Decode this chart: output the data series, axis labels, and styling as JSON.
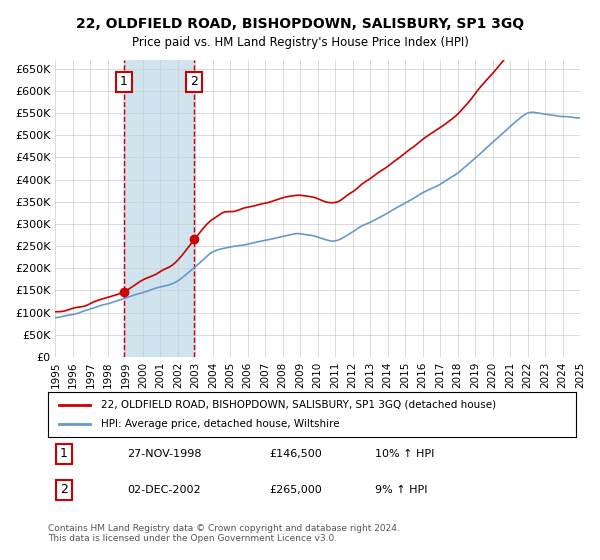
{
  "title": "22, OLDFIELD ROAD, BISHOPDOWN, SALISBURY, SP1 3GQ",
  "subtitle": "Price paid vs. HM Land Registry's House Price Index (HPI)",
  "ylabel_ticks": [
    "£0",
    "£50K",
    "£100K",
    "£150K",
    "£200K",
    "£250K",
    "£300K",
    "£350K",
    "£400K",
    "£450K",
    "£500K",
    "£550K",
    "£600K",
    "£650K"
  ],
  "ytick_values": [
    0,
    50000,
    100000,
    150000,
    200000,
    250000,
    300000,
    350000,
    400000,
    450000,
    500000,
    550000,
    600000,
    650000
  ],
  "x_start_year": 1995,
  "x_end_year": 2025,
  "sale1_year": 1998.92,
  "sale1_price": 146500,
  "sale2_year": 2002.92,
  "sale2_price": 265000,
  "sale1_label": "1",
  "sale2_label": "2",
  "sale1_date": "27-NOV-1998",
  "sale1_amount": "£146,500",
  "sale1_hpi": "10% ↑ HPI",
  "sale2_date": "02-DEC-2002",
  "sale2_amount": "£265,000",
  "sale2_hpi": "9% ↑ HPI",
  "legend_line1": "22, OLDFIELD ROAD, BISHOPDOWN, SALISBURY, SP1 3GQ (detached house)",
  "legend_line2": "HPI: Average price, detached house, Wiltshire",
  "footer": "Contains HM Land Registry data © Crown copyright and database right 2024.\nThis data is licensed under the Open Government Licence v3.0.",
  "line_color_red": "#cc0000",
  "line_color_blue": "#6699cc",
  "shading_color": "#d0e4f0",
  "background_color": "#ffffff",
  "grid_color": "#cccccc"
}
